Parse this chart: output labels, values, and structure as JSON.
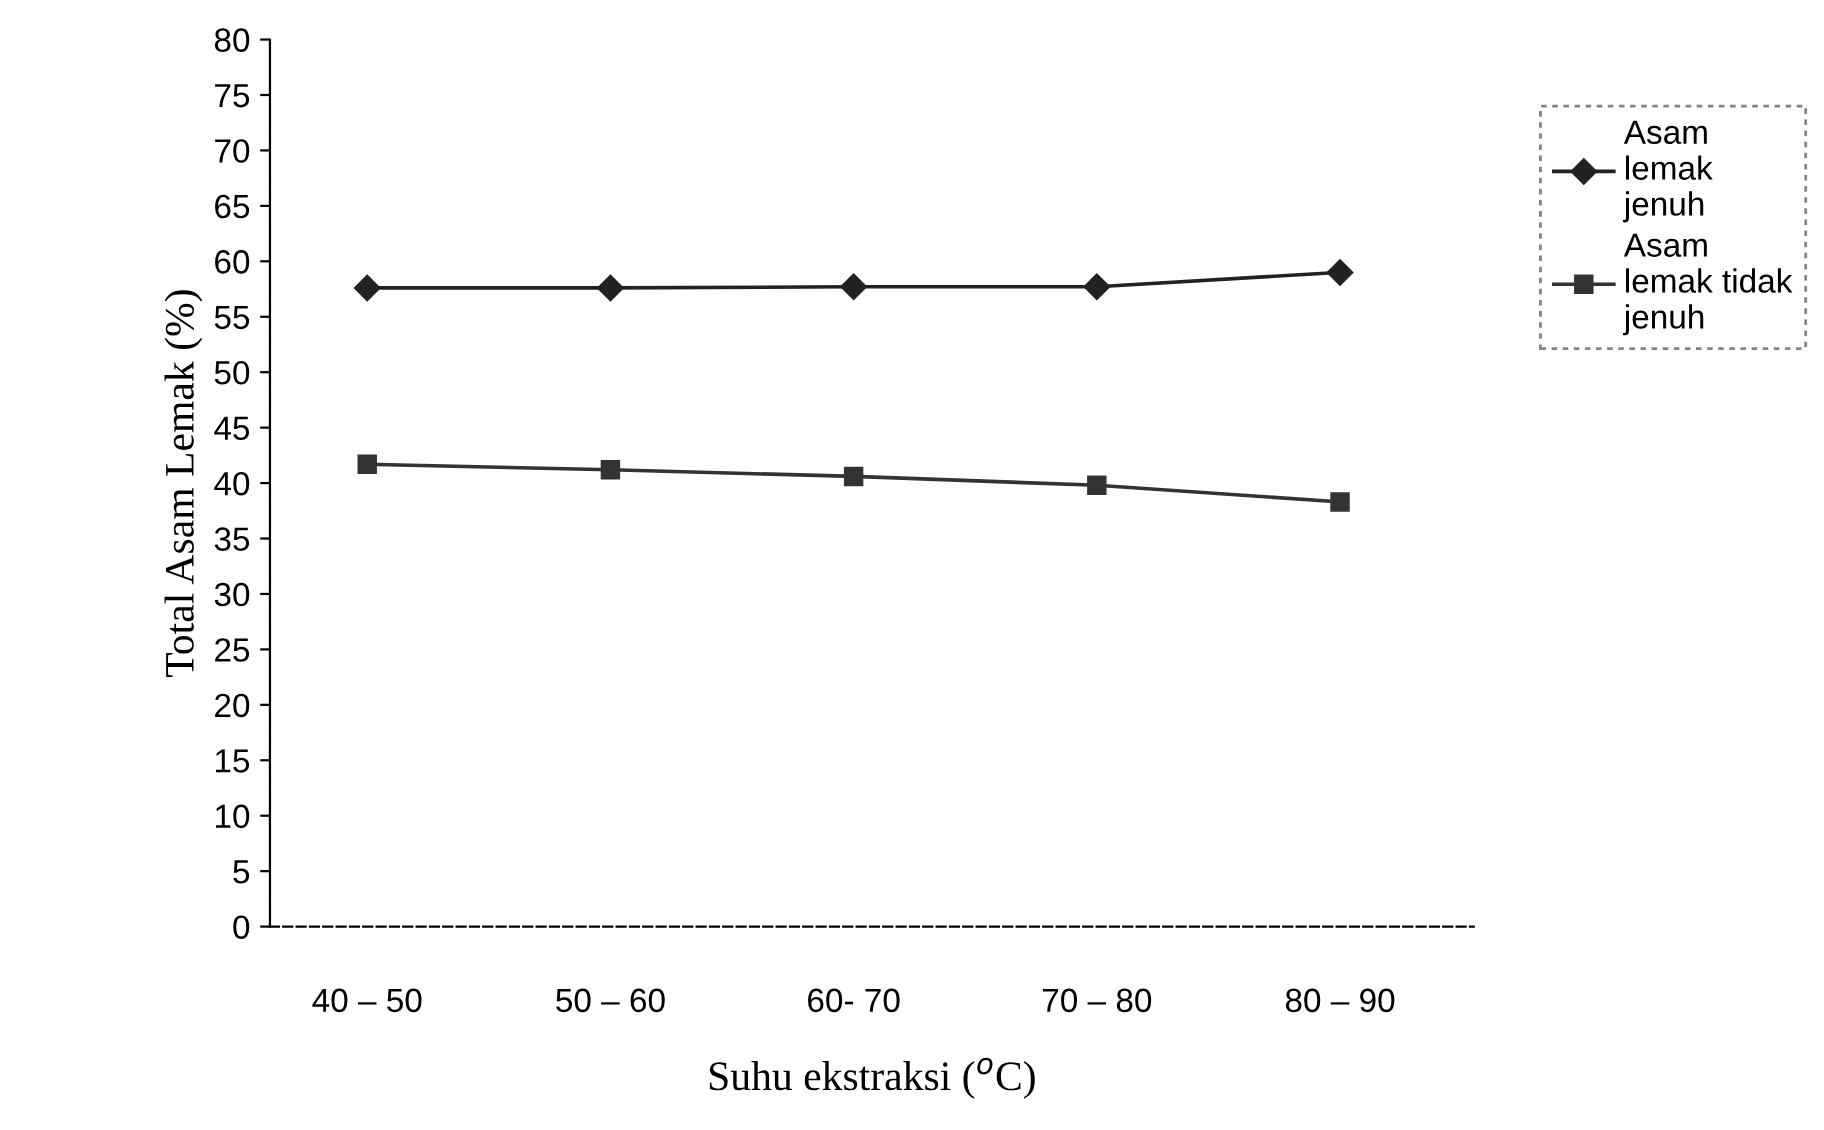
{
  "chart_data": {
    "type": "line",
    "xlabel": "Suhu ekstraksi ($^{o}$C)",
    "ylabel": "Total Asam Lemak (%)",
    "categories": [
      "40 – 50",
      "50 – 60",
      "60- 70",
      "70 – 80",
      "80 – 90"
    ],
    "series": [
      {
        "name": "Asam\nlemak\njenuh",
        "color": "#222222",
        "marker": "diamond",
        "values": [
          57.6,
          57.6,
          57.7,
          57.7,
          59.0
        ]
      },
      {
        "name": "Asam\nlemak tidak\njenuh",
        "color": "#333333",
        "marker": "square",
        "values": [
          41.7,
          41.2,
          40.6,
          39.8,
          38.3
        ]
      }
    ],
    "ylim": [
      0,
      80
    ],
    "yticks": [
      0,
      5,
      10,
      15,
      20,
      25,
      30,
      35,
      40,
      45,
      50,
      55,
      60,
      65,
      70,
      75,
      80
    ],
    "grid": false,
    "legend": "top right",
    "line_style": "solid"
  }
}
